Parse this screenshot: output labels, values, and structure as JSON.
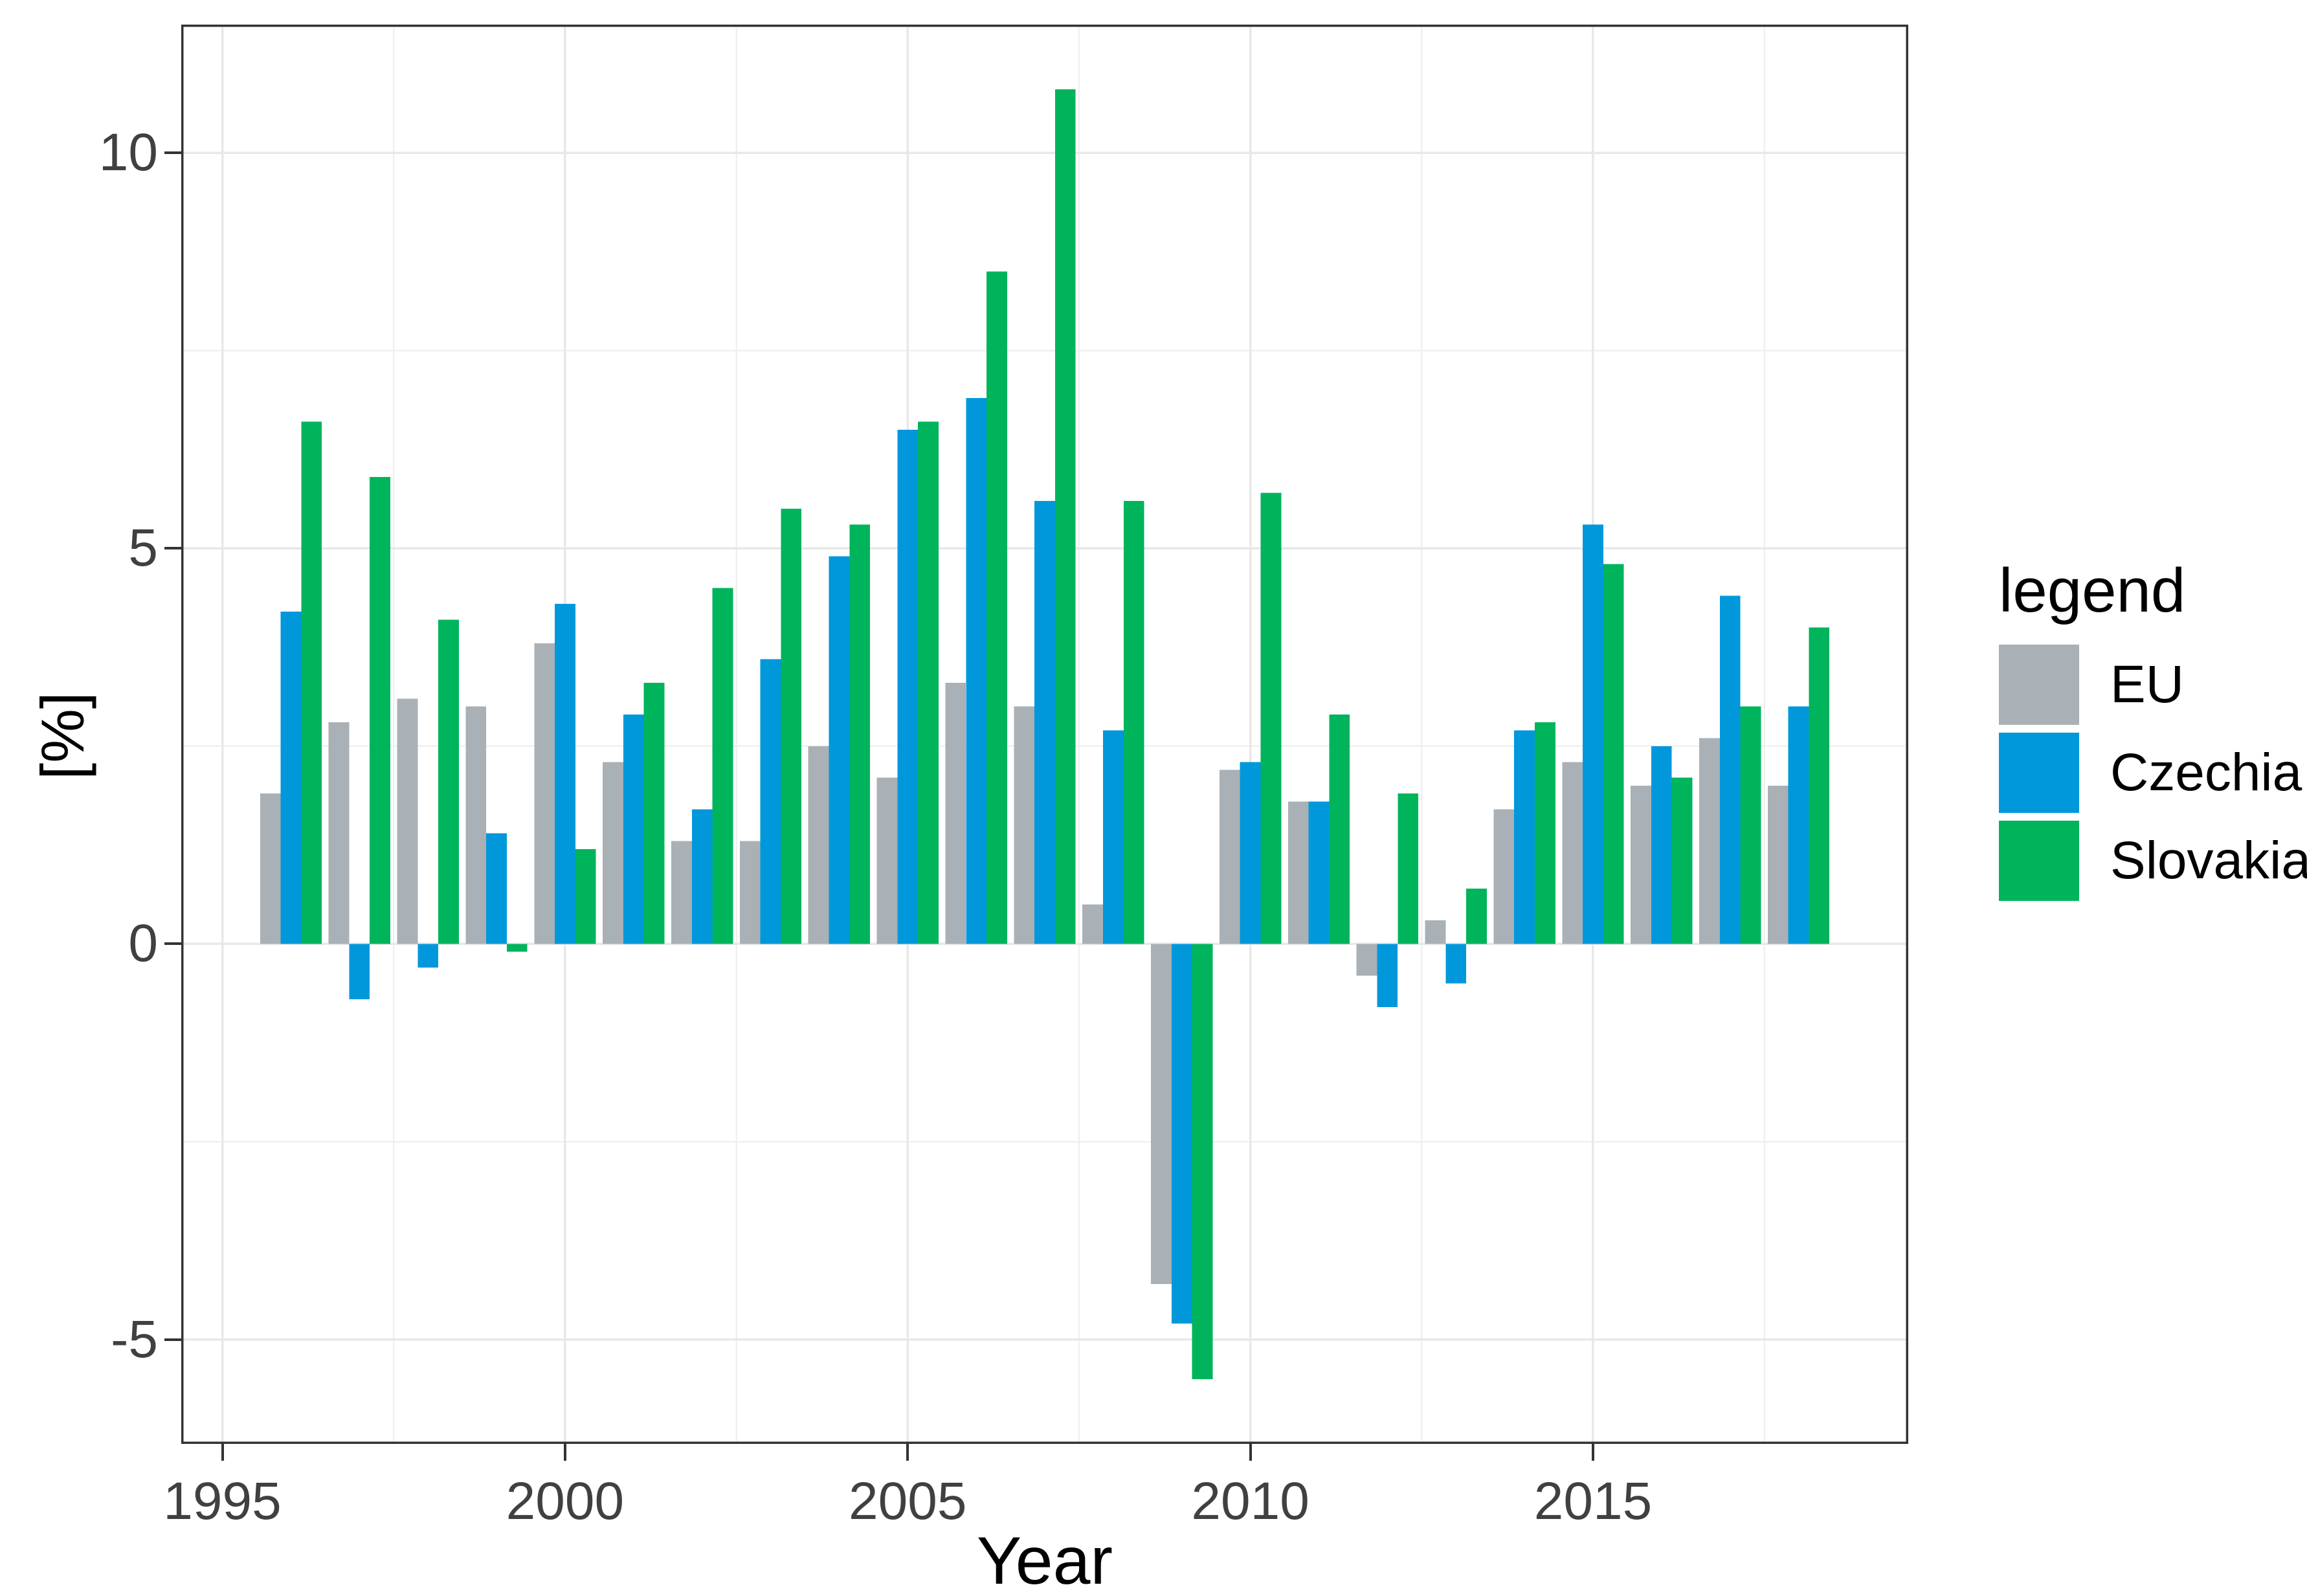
{
  "chart_data": {
    "type": "bar",
    "title": "",
    "xlabel": "Year",
    "ylabel": "[%]",
    "grid": "on",
    "legend_position": "right",
    "legend": {
      "title": "legend"
    },
    "categories": [
      1996,
      1997,
      1998,
      1999,
      2000,
      2001,
      2002,
      2003,
      2004,
      2005,
      2006,
      2007,
      2008,
      2009,
      2010,
      2011,
      2012,
      2013,
      2014,
      2015,
      2016,
      2017,
      2018
    ],
    "series": [
      {
        "name": "EU",
        "color": "#A9B0B6",
        "values": [
          1.9,
          2.8,
          3.1,
          3.0,
          3.8,
          2.3,
          1.3,
          1.3,
          2.5,
          2.1,
          3.3,
          3.0,
          0.5,
          -4.3,
          2.2,
          1.8,
          -0.4,
          0.3,
          1.7,
          2.3,
          2.0,
          2.6,
          2.0
        ]
      },
      {
        "name": "Czechia",
        "color": "#0098DB",
        "values": [
          4.2,
          -0.7,
          -0.3,
          1.4,
          4.3,
          2.9,
          1.7,
          3.6,
          4.9,
          6.5,
          6.9,
          5.6,
          2.7,
          -4.8,
          2.3,
          1.8,
          -0.8,
          -0.5,
          2.7,
          5.3,
          2.5,
          4.4,
          3.0
        ]
      },
      {
        "name": "Slovakia",
        "color": "#00B45C",
        "values": [
          6.6,
          5.9,
          4.1,
          -0.1,
          1.2,
          3.3,
          4.5,
          5.5,
          5.3,
          6.6,
          8.5,
          10.8,
          5.6,
          -5.5,
          5.7,
          2.9,
          1.9,
          0.7,
          2.8,
          4.8,
          2.1,
          3.0,
          4.0
        ]
      }
    ],
    "x_ticks": [
      {
        "label": "1995",
        "year": 1995
      },
      {
        "label": "2000",
        "year": 2000
      },
      {
        "label": "2005",
        "year": 2005
      },
      {
        "label": "2010",
        "year": 2010
      },
      {
        "label": "2015",
        "year": 2015
      }
    ],
    "y_ticks": [
      {
        "label": "10",
        "value": 10
      },
      {
        "label": "5",
        "value": 5
      },
      {
        "label": "0",
        "value": 0
      },
      {
        "label": "-5",
        "value": -5
      }
    ],
    "x_range": [
      1994.4,
      2019.6
    ],
    "y_range": [
      -6.32,
      11.62
    ],
    "major_y": [
      -5,
      0,
      5,
      10
    ],
    "minor_y": [
      -2.5,
      2.5,
      7.5
    ],
    "major_x_years": [
      1995,
      2000,
      2005,
      2010,
      2015
    ],
    "minor_x_years": [
      1997.5,
      2002.5,
      2007.5,
      2012.5,
      2017.5
    ],
    "bar_group_width_fraction": 0.9
  },
  "style_colors": {
    "panel_border": "#333333",
    "major_grid": "#e8e8e8",
    "minor_grid": "#f0f0f0",
    "tick_mark": "#333333",
    "tick_text": "#404040",
    "title_text": "#000000",
    "background": "#ffffff"
  }
}
